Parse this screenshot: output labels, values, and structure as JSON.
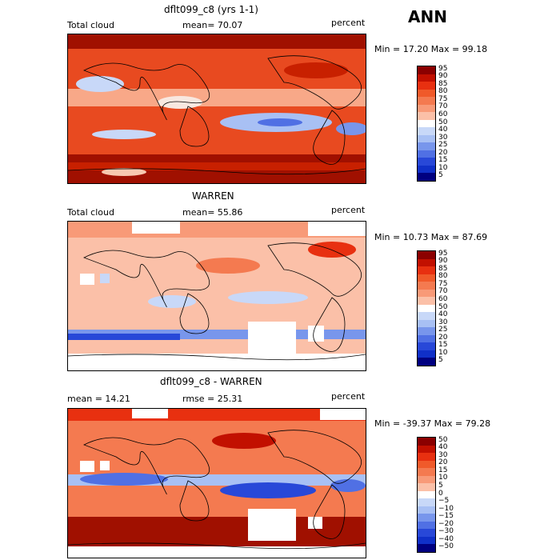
{
  "season": "ANN",
  "panels": [
    {
      "title": "dflt099_c8 (yrs 1-1)",
      "left_label": "Total cloud",
      "mid_label": "mean=  70.07",
      "right_label": "percent",
      "minmax": "Min =  17.20 Max =  99.18",
      "colorbar_labels": [
        "95",
        "90",
        "85",
        "80",
        "75",
        "70",
        "60",
        "50",
        "40",
        "30",
        "25",
        "20",
        "15",
        "10",
        "5"
      ],
      "colorbar_colors": [
        "#8b0000",
        "#c21000",
        "#e83010",
        "#f05a2a",
        "#f47a50",
        "#f89a78",
        "#fbc0a8",
        "#ffffff",
        "#c8d8f8",
        "#a8c0f4",
        "#7896ec",
        "#5070e4",
        "#2848d8",
        "#1030c8",
        "#000080"
      ]
    },
    {
      "title": "WARREN",
      "left_label": "Total cloud",
      "mid_label": "mean=  55.86",
      "right_label": "percent",
      "minmax": "Min =  10.73 Max =  87.69",
      "colorbar_labels": [
        "95",
        "90",
        "85",
        "80",
        "75",
        "70",
        "60",
        "50",
        "40",
        "30",
        "25",
        "20",
        "15",
        "10",
        "5"
      ],
      "colorbar_colors": [
        "#8b0000",
        "#c21000",
        "#e83010",
        "#f05a2a",
        "#f47a50",
        "#f89a78",
        "#fbc0a8",
        "#ffffff",
        "#c8d8f8",
        "#a8c0f4",
        "#7896ec",
        "#5070e4",
        "#2848d8",
        "#1030c8",
        "#000080"
      ]
    },
    {
      "title": "dflt099_c8 - WARREN",
      "left_label": "mean =  14.21",
      "mid_label": "rmse =  25.31",
      "right_label": "percent",
      "minmax": "Min = -39.37 Max =  79.28",
      "colorbar_labels": [
        "50",
        "40",
        "30",
        "20",
        "15",
        "10",
        "5",
        "0",
        "−5",
        "−10",
        "−15",
        "−20",
        "−30",
        "−40",
        "−50"
      ],
      "colorbar_colors": [
        "#8b0000",
        "#c21000",
        "#e83010",
        "#f05a2a",
        "#f47a50",
        "#f89a78",
        "#fbc0a8",
        "#ffffff",
        "#c8d8f8",
        "#a8c0f4",
        "#7896ec",
        "#5070e4",
        "#2848d8",
        "#1030c8",
        "#000080"
      ]
    }
  ]
}
